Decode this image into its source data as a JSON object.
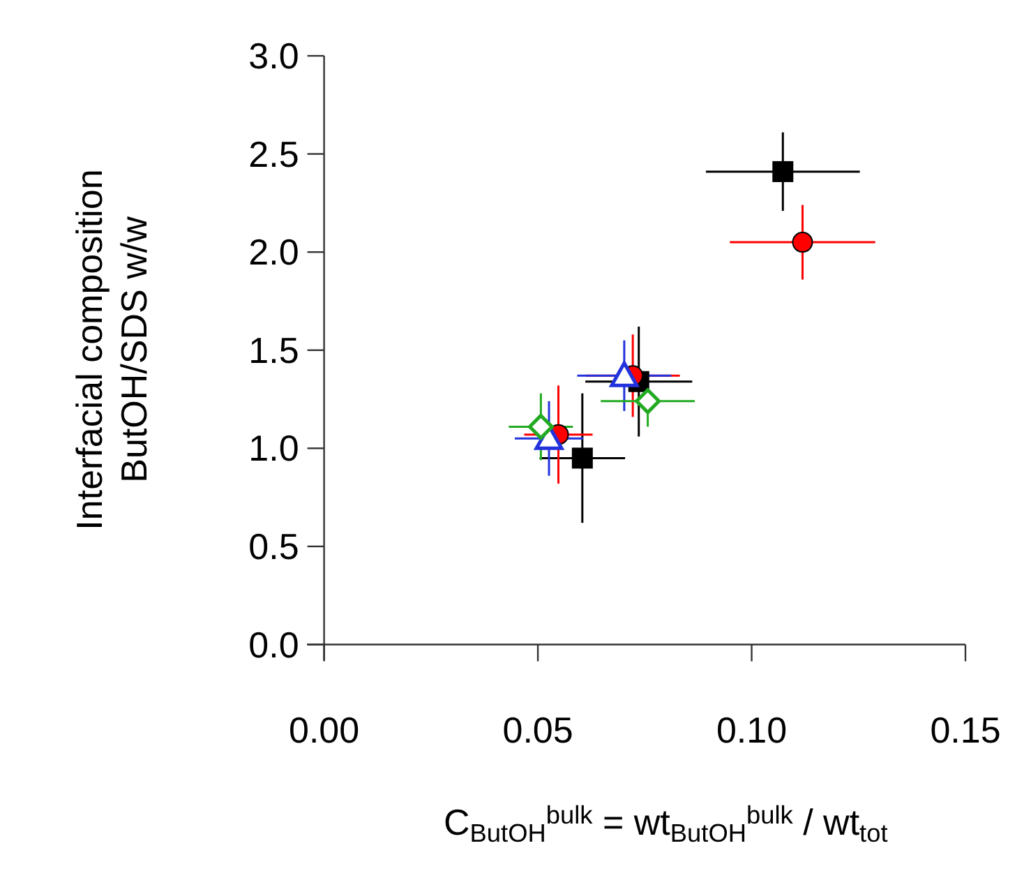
{
  "chart_data": {
    "type": "scatter",
    "xlabel": "C$_{ButOH}$$^{bulk}$ = wt$_{ButOH}$$^{bulk}$ / wt$_{tot}$",
    "ylabel": "Interfacial composition\nButOH/SDS w/w",
    "xlim": [
      -0.004,
      0.15
    ],
    "ylim": [
      -0.08,
      3.0
    ],
    "xticks": [
      {
        "value": 0,
        "label": "0.00"
      },
      {
        "value": 0.05,
        "label": "0.05"
      },
      {
        "value": 0.1,
        "label": "0.10"
      },
      {
        "value": 0.15,
        "label": "0.15"
      }
    ],
    "yticks": [
      {
        "value": 0,
        "label": "0.0"
      },
      {
        "value": 0.5,
        "label": "0.5"
      },
      {
        "value": 1,
        "label": "1.0"
      },
      {
        "value": 1.5,
        "label": "1.5"
      },
      {
        "value": 2,
        "label": "2.0"
      },
      {
        "value": 2.5,
        "label": "2.5"
      },
      {
        "value": 3,
        "label": "3.0"
      }
    ],
    "grid": false,
    "series": [
      {
        "color": "#000000",
        "marker": "square",
        "x": [
          0.0604,
          0.0736,
          0.1073
        ],
        "values": [
          0.95,
          1.34,
          2.41
        ],
        "errors": [
          0.33,
          0.28,
          0.2
        ],
        "xerrors": [
          0.01,
          0.0125,
          0.018
        ]
      },
      {
        "color": "#ff0000",
        "marker": "circle",
        "x": [
          0.0548,
          0.0722,
          0.1119
        ],
        "values": [
          1.07,
          1.37,
          2.05
        ],
        "errors": [
          0.25,
          0.21,
          0.19
        ],
        "xerrors": [
          0.008,
          0.011,
          0.017
        ]
      },
      {
        "color": "#2233dd",
        "marker": "triangle",
        "x": [
          0.0526,
          0.0702
        ],
        "values": [
          1.05,
          1.37
        ],
        "errors": [
          0.19,
          0.18
        ],
        "xerrors": [
          0.008,
          0.011
        ]
      },
      {
        "color": "#22aa22",
        "marker": "diamond",
        "x": [
          0.0507,
          0.0757
        ],
        "values": [
          1.11,
          1.24
        ],
        "errors": [
          0.17,
          0.13
        ],
        "xerrors": [
          0.0075,
          0.011
        ]
      }
    ]
  }
}
